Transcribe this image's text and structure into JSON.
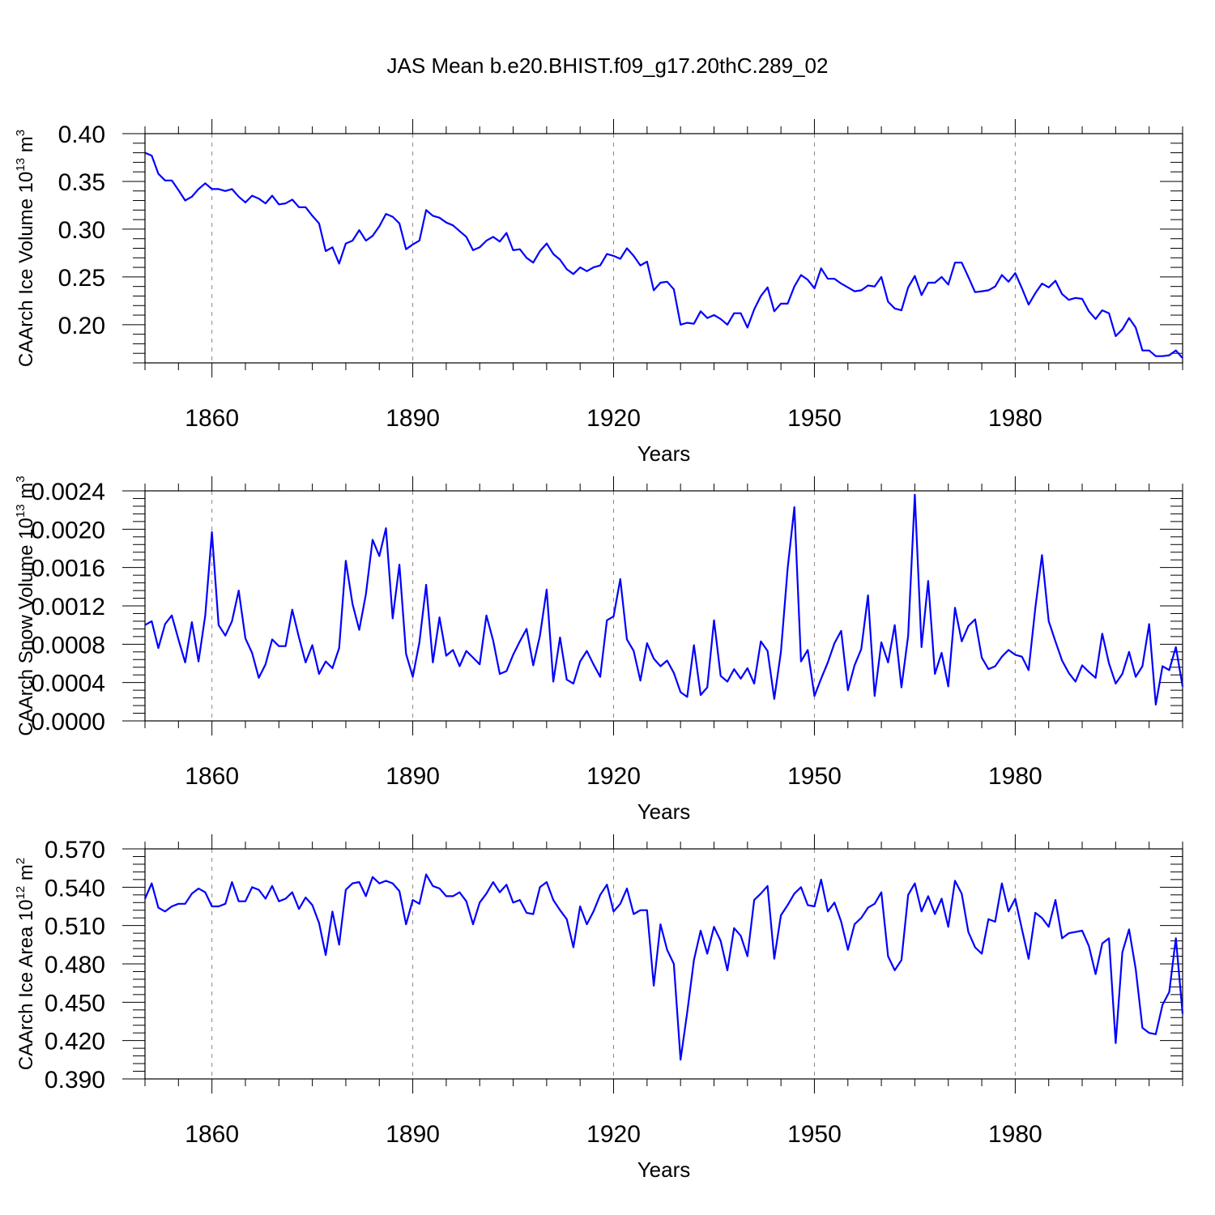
{
  "title": "JAS Mean b.e20.BHIST.f09_g17.20thC.289_02",
  "chart_data": [
    {
      "type": "line",
      "ylabel": {
        "main": "CAArch Ice Volume 10",
        "sup1": "13",
        "mid": " m",
        "sup2": "3"
      },
      "xlabel": "Years",
      "xlim": [
        1850,
        2005
      ],
      "xticks": [
        "1860",
        "1890",
        "1920",
        "1950",
        "1980"
      ],
      "ylim": [
        0.16,
        0.4
      ],
      "yticks": [
        "0.20",
        "0.25",
        "0.30",
        "0.35",
        "0.40"
      ],
      "grid": "vertical dashed at major x ticks",
      "line_color": "#0000ff",
      "x_start": 1850,
      "values": [
        0.38,
        0.377,
        0.358,
        0.351,
        0.351,
        0.341,
        0.33,
        0.334,
        0.342,
        0.348,
        0.342,
        0.342,
        0.34,
        0.342,
        0.334,
        0.328,
        0.335,
        0.332,
        0.327,
        0.335,
        0.326,
        0.327,
        0.331,
        0.323,
        0.323,
        0.314,
        0.306,
        0.277,
        0.281,
        0.264,
        0.285,
        0.288,
        0.299,
        0.288,
        0.293,
        0.303,
        0.316,
        0.313,
        0.306,
        0.279,
        0.284,
        0.288,
        0.32,
        0.314,
        0.312,
        0.307,
        0.304,
        0.298,
        0.292,
        0.278,
        0.281,
        0.288,
        0.292,
        0.287,
        0.296,
        0.278,
        0.279,
        0.27,
        0.265,
        0.277,
        0.285,
        0.274,
        0.268,
        0.258,
        0.253,
        0.26,
        0.256,
        0.26,
        0.262,
        0.274,
        0.272,
        0.269,
        0.28,
        0.272,
        0.262,
        0.266,
        0.236,
        0.244,
        0.245,
        0.237,
        0.2,
        0.202,
        0.201,
        0.214,
        0.207,
        0.21,
        0.206,
        0.2,
        0.212,
        0.212,
        0.197,
        0.216,
        0.23,
        0.239,
        0.214,
        0.222,
        0.222,
        0.24,
        0.252,
        0.247,
        0.238,
        0.259,
        0.248,
        0.248,
        0.243,
        0.239,
        0.235,
        0.236,
        0.241,
        0.24,
        0.25,
        0.224,
        0.217,
        0.215,
        0.239,
        0.251,
        0.231,
        0.244,
        0.244,
        0.25,
        0.242,
        0.265,
        0.265,
        0.25,
        0.234,
        0.235,
        0.236,
        0.24,
        0.252,
        0.245,
        0.254,
        0.238,
        0.221,
        0.233,
        0.243,
        0.239,
        0.246,
        0.232,
        0.226,
        0.228,
        0.227,
        0.214,
        0.206,
        0.215,
        0.212,
        0.188,
        0.195,
        0.207,
        0.197,
        0.173,
        0.173,
        0.167,
        0.167,
        0.168,
        0.173,
        0.165
      ]
    },
    {
      "type": "line",
      "ylabel": {
        "main": "CAArch Snow Volume 10",
        "sup1": "13",
        "mid": " m",
        "sup2": "3"
      },
      "xlabel": "Years",
      "xlim": [
        1850,
        2005
      ],
      "xticks": [
        "1860",
        "1890",
        "1920",
        "1950",
        "1980"
      ],
      "ylim": [
        0.0,
        0.0024
      ],
      "yticks": [
        "0.0000",
        "0.0004",
        "0.0008",
        "0.0012",
        "0.0016",
        "0.0020",
        "0.0024"
      ],
      "grid": "vertical dashed at major x ticks",
      "line_color": "#0000ff",
      "x_start": 1850,
      "values": [
        0.001,
        0.00104,
        0.00076,
        0.00101,
        0.0011,
        0.00085,
        0.00061,
        0.00103,
        0.00062,
        0.0011,
        0.00197,
        0.001,
        0.00089,
        0.00104,
        0.00136,
        0.00086,
        0.00071,
        0.00045,
        0.00059,
        0.00085,
        0.00078,
        0.00078,
        0.00116,
        0.00087,
        0.00061,
        0.00079,
        0.00049,
        0.00062,
        0.00055,
        0.00076,
        0.00167,
        0.00122,
        0.00095,
        0.00132,
        0.00189,
        0.00172,
        0.00201,
        0.00107,
        0.00163,
        0.0007,
        0.00046,
        0.00082,
        0.00142,
        0.00061,
        0.00108,
        0.00068,
        0.00074,
        0.00057,
        0.00073,
        0.00066,
        0.00059,
        0.0011,
        0.00084,
        0.00049,
        0.00052,
        0.00069,
        0.00083,
        0.00096,
        0.00058,
        0.00089,
        0.00137,
        0.00041,
        0.00087,
        0.00043,
        0.00039,
        0.00062,
        0.00073,
        0.00059,
        0.00046,
        0.00105,
        0.00109,
        0.00148,
        0.00085,
        0.00073,
        0.00042,
        0.00081,
        0.00065,
        0.00057,
        0.00063,
        0.0005,
        0.0003,
        0.00025,
        0.00079,
        0.00027,
        0.00035,
        0.00105,
        0.00047,
        0.00041,
        0.00054,
        0.00044,
        0.00055,
        0.00039,
        0.00083,
        0.00073,
        0.00023,
        0.00072,
        0.00159,
        0.00223,
        0.00062,
        0.00074,
        0.00026,
        0.00044,
        0.00061,
        0.00081,
        0.00094,
        0.00032,
        0.00058,
        0.00075,
        0.00131,
        0.00026,
        0.00082,
        0.00061,
        0.001,
        0.00035,
        0.00089,
        0.00236,
        0.00077,
        0.00146,
        0.00049,
        0.00071,
        0.00036,
        0.00118,
        0.00083,
        0.00099,
        0.00106,
        0.00066,
        0.00054,
        0.00057,
        0.00067,
        0.00074,
        0.00069,
        0.00067,
        0.00053,
        0.00118,
        0.00173,
        0.00104,
        0.00083,
        0.00063,
        0.0005,
        0.00041,
        0.00058,
        0.00051,
        0.00045,
        0.00091,
        0.0006,
        0.00039,
        0.00049,
        0.00072,
        0.00046,
        0.00057,
        0.00101,
        0.00017,
        0.00057,
        0.00053,
        0.00077,
        0.00036
      ]
    },
    {
      "type": "line",
      "ylabel": {
        "main": "CAArch Ice Area 10",
        "sup1": "12",
        "mid": " m",
        "sup2": "2"
      },
      "xlabel": "Years",
      "xlim": [
        1850,
        2005
      ],
      "xticks": [
        "1860",
        "1890",
        "1920",
        "1950",
        "1980"
      ],
      "ylim": [
        0.39,
        0.57
      ],
      "yticks": [
        "0.390",
        "0.420",
        "0.450",
        "0.480",
        "0.510",
        "0.540",
        "0.570"
      ],
      "grid": "vertical dashed at major x ticks",
      "line_color": "#0000ff",
      "x_start": 1850,
      "values": [
        0.531,
        0.543,
        0.524,
        0.521,
        0.525,
        0.527,
        0.527,
        0.535,
        0.539,
        0.536,
        0.525,
        0.525,
        0.527,
        0.544,
        0.529,
        0.529,
        0.54,
        0.538,
        0.531,
        0.541,
        0.529,
        0.531,
        0.536,
        0.523,
        0.532,
        0.526,
        0.512,
        0.487,
        0.521,
        0.495,
        0.538,
        0.543,
        0.544,
        0.533,
        0.548,
        0.543,
        0.545,
        0.543,
        0.537,
        0.511,
        0.53,
        0.527,
        0.55,
        0.541,
        0.539,
        0.533,
        0.533,
        0.536,
        0.529,
        0.511,
        0.528,
        0.535,
        0.544,
        0.536,
        0.542,
        0.528,
        0.53,
        0.52,
        0.519,
        0.54,
        0.544,
        0.53,
        0.522,
        0.515,
        0.493,
        0.525,
        0.511,
        0.521,
        0.534,
        0.542,
        0.521,
        0.527,
        0.539,
        0.519,
        0.522,
        0.522,
        0.463,
        0.511,
        0.491,
        0.48,
        0.405,
        0.442,
        0.483,
        0.506,
        0.488,
        0.509,
        0.498,
        0.475,
        0.508,
        0.502,
        0.486,
        0.53,
        0.535,
        0.541,
        0.484,
        0.518,
        0.526,
        0.535,
        0.54,
        0.526,
        0.525,
        0.546,
        0.521,
        0.528,
        0.513,
        0.491,
        0.511,
        0.516,
        0.524,
        0.527,
        0.536,
        0.486,
        0.475,
        0.483,
        0.534,
        0.543,
        0.521,
        0.533,
        0.519,
        0.531,
        0.509,
        0.545,
        0.535,
        0.505,
        0.493,
        0.488,
        0.515,
        0.513,
        0.543,
        0.521,
        0.531,
        0.507,
        0.484,
        0.52,
        0.516,
        0.509,
        0.53,
        0.5,
        0.504,
        0.505,
        0.506,
        0.494,
        0.472,
        0.496,
        0.5,
        0.418,
        0.489,
        0.507,
        0.476,
        0.43,
        0.426,
        0.425,
        0.448,
        0.458,
        0.5,
        0.441
      ]
    }
  ]
}
